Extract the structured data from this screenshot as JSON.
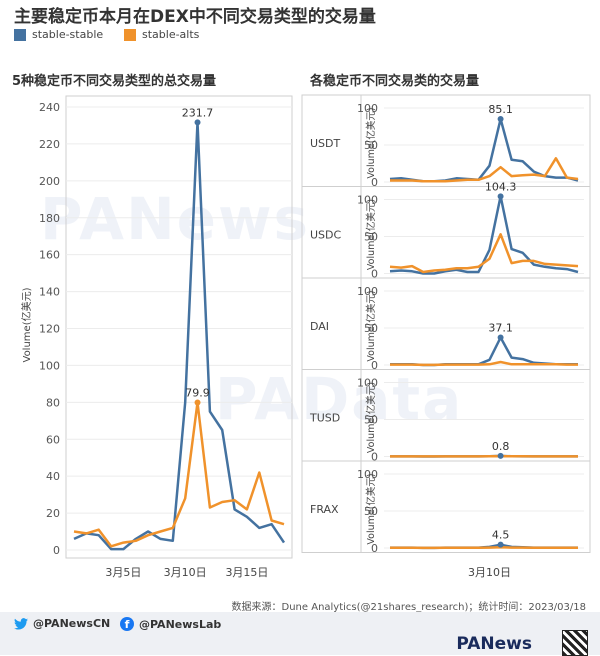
{
  "title": "主要稳定币本月在DEX中不同交易类型的交易量",
  "legend": [
    {
      "name": "stable-stable",
      "color": "#4472a0"
    },
    {
      "name": "stable-alts",
      "color": "#f0922b"
    }
  ],
  "chart_data": [
    {
      "type": "line",
      "title": "5种稳定币不同交易类型的总交易量",
      "ylabel": "Volume(亿美元)",
      "ylim": [
        0,
        240
      ],
      "yticks": [
        0,
        20,
        40,
        60,
        80,
        100,
        120,
        140,
        160,
        180,
        200,
        220,
        240
      ],
      "x_dates": [
        "3月1日",
        "3月2日",
        "3月3日",
        "3月4日",
        "3月5日",
        "3月6日",
        "3月7日",
        "3月8日",
        "3月9日",
        "3月10日",
        "3月11日",
        "3月12日",
        "3月13日",
        "3月14日",
        "3月15日",
        "3月16日",
        "3月17日",
        "3月18日"
      ],
      "xtick_labels": [
        {
          "label": "3月5日",
          "index": 4
        },
        {
          "label": "3月10日",
          "index": 9
        },
        {
          "label": "3月15日",
          "index": 14
        }
      ],
      "series": [
        {
          "name": "stable-stable",
          "values": [
            6,
            9,
            8,
            0.5,
            0.5,
            6,
            10,
            6,
            5,
            80,
            231.7,
            75,
            65,
            22,
            18,
            12,
            14,
            4
          ]
        },
        {
          "name": "stable-alts",
          "values": [
            10,
            9,
            11,
            2,
            4,
            5,
            8,
            10,
            12,
            28,
            79.9,
            23,
            26,
            27,
            22,
            42,
            16,
            14
          ]
        }
      ],
      "annotations": [
        {
          "label": "231.7",
          "series": "stable-stable",
          "index": 10
        },
        {
          "label": "79.9",
          "series": "stable-alts",
          "index": 10
        }
      ]
    },
    {
      "type": "line",
      "title": "各稳定币不同交易类的交易量",
      "ylabel": "Volume(亿美元)",
      "ylim": [
        0,
        100
      ],
      "yticks": [
        0,
        50,
        100
      ],
      "xtick_labels": [
        {
          "label": "3月10日",
          "index": 9
        }
      ],
      "panels": [
        {
          "name": "USDT",
          "label": "85.1",
          "label_index": 10,
          "series": [
            {
              "name": "stable-stable",
              "values": [
                4,
                5,
                3,
                1,
                1,
                2,
                5,
                4,
                3,
                22,
                85.1,
                30,
                28,
                14,
                8,
                6,
                6,
                2
              ]
            },
            {
              "name": "stable-alts",
              "values": [
                2,
                2,
                2,
                1,
                1,
                1,
                2,
                3,
                3,
                8,
                20,
                8,
                9,
                10,
                8,
                32,
                6,
                4
              ]
            }
          ]
        },
        {
          "name": "USDC",
          "label": "104.3",
          "label_index": 10,
          "series": [
            {
              "name": "stable-stable",
              "values": [
                3,
                4,
                3,
                0,
                0,
                3,
                5,
                2,
                2,
                32,
                104.3,
                33,
                28,
                12,
                9,
                7,
                6,
                2
              ]
            },
            {
              "name": "stable-alts",
              "values": [
                9,
                8,
                10,
                2,
                4,
                5,
                7,
                7,
                9,
                20,
                53,
                14,
                17,
                17,
                13,
                12,
                11,
                10
              ]
            }
          ]
        },
        {
          "name": "DAI",
          "label": "37.1",
          "label_index": 10,
          "series": [
            {
              "name": "stable-stable",
              "values": [
                1,
                1,
                1,
                0,
                0,
                1,
                1,
                1,
                1,
                7,
                37.1,
                10,
                8,
                3,
                2,
                1,
                1,
                1
              ]
            },
            {
              "name": "stable-alts",
              "values": [
                0.5,
                0.5,
                0.5,
                0.2,
                0.2,
                0.5,
                0.5,
                0.5,
                0.5,
                1,
                4,
                1,
                1,
                1,
                1,
                1,
                0.5,
                0.5
              ]
            }
          ]
        },
        {
          "name": "TUSD",
          "label": "0.8",
          "label_index": 10,
          "series": [
            {
              "name": "stable-stable",
              "values": [
                0.1,
                0.1,
                0.1,
                0,
                0,
                0.1,
                0.1,
                0.1,
                0.1,
                0.3,
                0.8,
                0.3,
                0.2,
                0.1,
                0.1,
                0.1,
                0.1,
                0.1
              ]
            },
            {
              "name": "stable-alts",
              "values": [
                0.2,
                0.2,
                0.2,
                0.1,
                0.1,
                0.2,
                0.2,
                0.2,
                0.2,
                0.3,
                0.5,
                0.3,
                0.3,
                0.2,
                0.2,
                0.2,
                0.2,
                0.2
              ]
            }
          ]
        },
        {
          "name": "FRAX",
          "label": "4.5",
          "label_index": 10,
          "series": [
            {
              "name": "stable-stable",
              "values": [
                0.5,
                0.5,
                0.5,
                0.1,
                0.1,
                0.5,
                0.5,
                0.5,
                0.5,
                1.5,
                4.5,
                1.5,
                1,
                0.5,
                0.5,
                0.5,
                0.5,
                0.5
              ]
            },
            {
              "name": "stable-alts",
              "values": [
                0.3,
                0.3,
                0.3,
                0.1,
                0.1,
                0.3,
                0.3,
                0.3,
                0.3,
                0.5,
                1,
                0.5,
                0.5,
                0.3,
                0.3,
                0.3,
                0.3,
                0.3
              ]
            }
          ]
        }
      ]
    }
  ],
  "footer": {
    "source": "数据来源：Dune Analytics(@21shares_research)；统计时间：2023/03/18",
    "twitter": "@PANewsCN",
    "facebook": "@PANewsLab",
    "brand": "PANews",
    "watermarks": [
      "PANews",
      "PAData"
    ]
  }
}
